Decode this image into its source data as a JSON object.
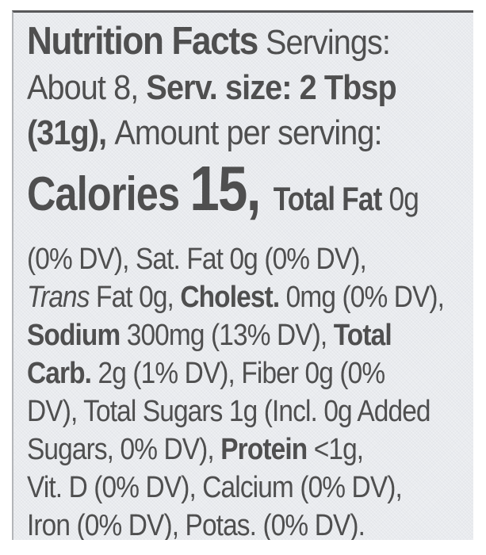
{
  "colors": {
    "label_background": "#edeff2",
    "text": "#4e4e4e",
    "top_edge": "#58585a",
    "left_edge": "#b3b5b8"
  },
  "label": {
    "line1": {
      "title": "Nutrition Facts",
      "servings_label": " Servings:"
    },
    "line2": {
      "servings_value": "About 8, ",
      "serving_size_label": "Serv. size: 2 Tbsp"
    },
    "line3": {
      "serving_size_weight": "(31g), ",
      "amount_per_serving": "Amount per serving:"
    },
    "line4": {
      "calories_label": "Calories ",
      "calories_value": "15, ",
      "total_fat_label": "Total Fat ",
      "total_fat_value": "0g"
    },
    "line5": {
      "text": "(0% DV), Sat. Fat 0g (0% DV),"
    },
    "line6": {
      "trans_word": "Trans",
      "trans_fat_rest": " Fat 0g, ",
      "cholesterol_label": "Cholest.",
      "cholesterol_value": " 0mg (0% DV),"
    },
    "line7": {
      "sodium_label": "Sodium",
      "sodium_value": " 300mg (13% DV), ",
      "total_carb_label_start": "Total"
    },
    "line8": {
      "total_carb_label_end": "Carb.",
      "carb_fiber_values": " 2g (1% DV), Fiber 0g (0%"
    },
    "line9": {
      "text": "DV), Total Sugars 1g (Incl. 0g Added"
    },
    "line10": {
      "sugars_value_end": "Sugars, 0% DV), ",
      "protein_label": "Protein",
      "protein_value": " <1g,"
    },
    "line11": {
      "text": "Vit. D (0% DV), Calcium (0% DV),"
    },
    "line12": {
      "text": "Iron (0% DV), Potas. (0% DV)."
    }
  }
}
